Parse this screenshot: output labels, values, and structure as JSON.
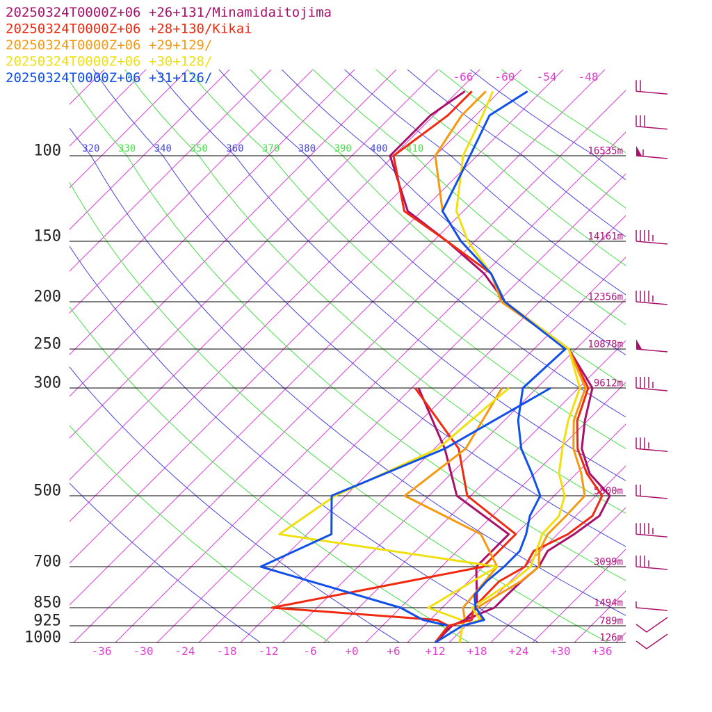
{
  "chart_data": {
    "type": "line",
    "legend": [
      {
        "text": "20250324T0000Z+06 +26+131/Minamidaitojima",
        "color": "#a8106a"
      },
      {
        "text": "20250324T0000Z+06 +28+130/Kikai",
        "color": "#f02a10"
      },
      {
        "text": "20250324T0000Z+06 +29+129/",
        "color": "#f59a10"
      },
      {
        "text": "20250324T0000Z+06 +30+128/",
        "color": "#f0e010"
      },
      {
        "text": "20250324T0000Z+06 +31+126/",
        "color": "#1050e8"
      }
    ],
    "pressure_levels": [
      {
        "p": 100,
        "label": "100",
        "height": "16535m"
      },
      {
        "p": 150,
        "label": "150",
        "height": "14161m"
      },
      {
        "p": 200,
        "label": "200",
        "height": "12356m"
      },
      {
        "p": 250,
        "label": "250",
        "height": "10878m"
      },
      {
        "p": 300,
        "label": "300",
        "height": "9612m"
      },
      {
        "p": 500,
        "label": "500",
        "height": "5800m"
      },
      {
        "p": 700,
        "label": "700",
        "height": "3099m"
      },
      {
        "p": 850,
        "label": "850",
        "height": "1494m"
      },
      {
        "p": 925,
        "label": "925",
        "height": "789m"
      },
      {
        "p": 1000,
        "label": "1000",
        "height": "126m"
      }
    ],
    "temperature_ticks": [
      "-36",
      "-30",
      "-24",
      "-18",
      "-12",
      "-6",
      "+0",
      "+6",
      "+12",
      "+18",
      "+24",
      "+30",
      "+36"
    ],
    "mixing_ratio_labels": [
      "-66",
      "-60",
      "-54",
      "-48"
    ],
    "theta_labels": [
      "320",
      "330",
      "340",
      "350",
      "360",
      "370",
      "380",
      "390",
      "400",
      "410"
    ],
    "series": [
      {
        "name": "20250324T0000Z+06 +26+131/Minamidaitojima",
        "color": "#a8106a",
        "temperature": [
          [
            1000,
            12.0
          ],
          [
            925,
            12.0
          ],
          [
            900,
            13.0
          ],
          [
            850,
            15.5
          ],
          [
            800,
            15.5
          ],
          [
            750,
            15.6
          ],
          [
            700,
            16.0
          ],
          [
            650,
            15.0
          ],
          [
            600,
            16.4
          ],
          [
            550,
            17.4
          ],
          [
            500,
            16.0
          ],
          [
            450,
            9.9
          ],
          [
            400,
            5.2
          ],
          [
            350,
            1.6
          ],
          [
            300,
            -2.0
          ],
          [
            250,
            -11.0
          ],
          [
            200,
            -27.0
          ],
          [
            175,
            -34.0
          ],
          [
            150,
            -44.0
          ],
          [
            130,
            -54.0
          ],
          [
            100,
            -64.5
          ],
          [
            80,
            -64.5
          ],
          [
            70,
            -63.0
          ]
        ],
        "dewpoint": [
          [
            1000,
            12.0
          ],
          [
            925,
            12.0
          ],
          [
            900,
            13.0
          ],
          [
            850,
            13.0
          ],
          [
            700,
            7.0
          ],
          [
            600,
            7.0
          ],
          [
            500,
            -6.0
          ],
          [
            400,
            -14.5
          ],
          [
            300,
            -27.0
          ]
        ]
      },
      {
        "name": "20250324T0000Z+06 +28+130/Kikai",
        "color": "#f02a10",
        "temperature": [
          [
            1000,
            12.0
          ],
          [
            925,
            11.5
          ],
          [
            900,
            14.0
          ],
          [
            850,
            12.5
          ],
          [
            750,
            12.4
          ],
          [
            700,
            14.0
          ],
          [
            650,
            13.0
          ],
          [
            600,
            15.5
          ],
          [
            550,
            16.4
          ],
          [
            500,
            14.9
          ],
          [
            450,
            9.5
          ],
          [
            400,
            4.6
          ],
          [
            350,
            0.5
          ],
          [
            300,
            -2.6
          ],
          [
            250,
            -11.0
          ],
          [
            200,
            -27.0
          ],
          [
            175,
            -33.0
          ],
          [
            150,
            -44.0
          ],
          [
            130,
            -54.5
          ],
          [
            100,
            -64.0
          ],
          [
            80,
            -62.0
          ],
          [
            70,
            -62.0
          ]
        ],
        "dewpoint": [
          [
            1000,
            12.0
          ],
          [
            925,
            11.5
          ],
          [
            900,
            9.0
          ],
          [
            850,
            -16.5
          ],
          [
            700,
            8.0
          ],
          [
            600,
            8.0
          ],
          [
            500,
            -4.5
          ],
          [
            400,
            -12.5
          ],
          [
            300,
            -27.5
          ]
        ]
      },
      {
        "name": "20250324T0000Z+06 +29+129/",
        "color": "#f59a10",
        "temperature": [
          [
            1000,
            15.5
          ],
          [
            925,
            13.5
          ],
          [
            900,
            15.5
          ],
          [
            850,
            13.0
          ],
          [
            750,
            15.5
          ],
          [
            700,
            16.0
          ],
          [
            650,
            13.8
          ],
          [
            600,
            12.6
          ],
          [
            550,
            12.6
          ],
          [
            500,
            12.4
          ],
          [
            450,
            8.7
          ],
          [
            400,
            4.0
          ],
          [
            350,
            0.0
          ],
          [
            300,
            -3.0
          ],
          [
            250,
            -11.0
          ],
          [
            200,
            -27.5
          ],
          [
            175,
            -33.0
          ],
          [
            150,
            -42.0
          ],
          [
            130,
            -49.0
          ],
          [
            100,
            -58.0
          ],
          [
            80,
            -60.0
          ],
          [
            70,
            -60.0
          ]
        ],
        "dewpoint": [
          [
            1000,
            15.5
          ],
          [
            925,
            13.5
          ],
          [
            900,
            13.0
          ],
          [
            850,
            11.0
          ],
          [
            700,
            10.0
          ],
          [
            600,
            3.0
          ],
          [
            500,
            -13.5
          ],
          [
            400,
            -11.5
          ],
          [
            300,
            -15.0
          ]
        ]
      },
      {
        "name": "20250324T0000Z+06 +30+128/",
        "color": "#f0e010",
        "temperature": [
          [
            1000,
            15.5
          ],
          [
            925,
            13.5
          ],
          [
            900,
            15.2
          ],
          [
            850,
            12.3
          ],
          [
            750,
            14.3
          ],
          [
            700,
            14.8
          ],
          [
            650,
            13.4
          ],
          [
            600,
            11.8
          ],
          [
            550,
            11.6
          ],
          [
            500,
            9.5
          ],
          [
            450,
            5.5
          ],
          [
            400,
            2.4
          ],
          [
            350,
            -0.8
          ],
          [
            300,
            -3.8
          ],
          [
            250,
            -11.0
          ],
          [
            200,
            -27.0
          ],
          [
            175,
            -33.0
          ],
          [
            150,
            -41.0
          ],
          [
            130,
            -47.0
          ],
          [
            100,
            -54.0
          ],
          [
            80,
            -57.0
          ],
          [
            70,
            -59.0
          ]
        ],
        "dewpoint": [
          [
            1000,
            15.5
          ],
          [
            925,
            13.5
          ],
          [
            900,
            12.5
          ],
          [
            850,
            6.0
          ],
          [
            700,
            10.0
          ],
          [
            600,
            -26.0
          ],
          [
            500,
            -23.5
          ],
          [
            400,
            -15.5
          ],
          [
            300,
            -14.0
          ]
        ]
      },
      {
        "name": "20250324T0000Z+06 +31+126/",
        "color": "#1050e8",
        "temperature": [
          [
            1000,
            12.0
          ],
          [
            925,
            13.5
          ],
          [
            900,
            15.8
          ],
          [
            850,
            12.8
          ],
          [
            800,
            10.8
          ],
          [
            750,
            10.6
          ],
          [
            700,
            11.0
          ],
          [
            650,
            11.0
          ],
          [
            600,
            9.5
          ],
          [
            550,
            7.4
          ],
          [
            500,
            6.0
          ],
          [
            450,
            1.6
          ],
          [
            400,
            -3.5
          ],
          [
            350,
            -8.0
          ],
          [
            300,
            -12.0
          ],
          [
            250,
            -11.5
          ],
          [
            200,
            -27.0
          ],
          [
            175,
            -33.0
          ],
          [
            150,
            -42.0
          ],
          [
            130,
            -49.0
          ],
          [
            100,
            -53.0
          ],
          [
            80,
            -56.0
          ],
          [
            70,
            -54.0
          ]
        ],
        "dewpoint": [
          [
            1000,
            12.0
          ],
          [
            925,
            11.5
          ],
          [
            900,
            7.0
          ],
          [
            850,
            2.0
          ],
          [
            700,
            -24.0
          ],
          [
            600,
            -18.5
          ],
          [
            500,
            -24.0
          ],
          [
            400,
            -14.5
          ],
          [
            300,
            -8.0
          ]
        ]
      }
    ],
    "wind_barbs": [
      {
        "p": 70,
        "kt": 20
      },
      {
        "p": 85,
        "kt": 30
      },
      {
        "p": 100,
        "kt": 55
      },
      {
        "p": 150,
        "kt": 45
      },
      {
        "p": 200,
        "kt": 45
      },
      {
        "p": 250,
        "kt": 50
      },
      {
        "p": 300,
        "kt": 45
      },
      {
        "p": 400,
        "kt": 35
      },
      {
        "p": 500,
        "kt": 20
      },
      {
        "p": 600,
        "kt": 45
      },
      {
        "p": 700,
        "kt": 35
      },
      {
        "p": 850,
        "kt": 5
      },
      {
        "p": 925,
        "kt": 0
      },
      {
        "p": 1000,
        "kt": 0
      }
    ]
  }
}
